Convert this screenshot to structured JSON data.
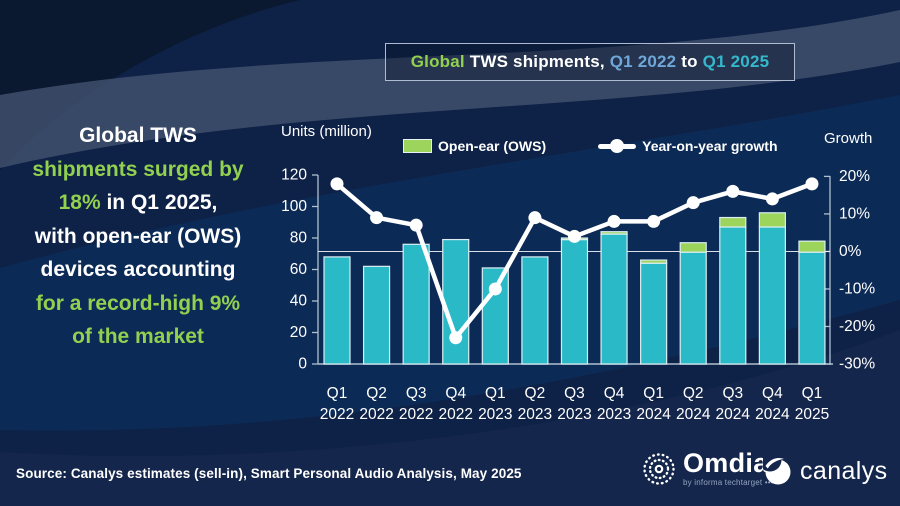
{
  "colors": {
    "background": "#0E2146",
    "accent_green": "#92D050",
    "bar_teal": "#29B9C7",
    "ows_green": "#9CD45C",
    "line_white": "#FFFFFF",
    "axis_gray": "#AFC0CF",
    "q1_2022_blue": "#6FA8D8",
    "q1_2025_teal": "#35B7CC"
  },
  "title_box": {
    "segments": [
      {
        "text": "Global",
        "color": "#92D050"
      },
      {
        "text": " TWS shipments, ",
        "color": "#FFFFFF"
      },
      {
        "text": "Q1 2022",
        "color": "#6FA8D8"
      },
      {
        "text": " to ",
        "color": "#FFFFFF"
      },
      {
        "text": "Q1 2025",
        "color": "#35B7CC"
      }
    ]
  },
  "headline": {
    "lines": [
      {
        "segments": [
          {
            "text": "Global TWS",
            "color": "#FFFFFF"
          }
        ]
      },
      {
        "segments": [
          {
            "text": "shipments surged by",
            "color": "#92D050"
          }
        ]
      },
      {
        "segments": [
          {
            "text": "18%",
            "color": "#92D050"
          },
          {
            "text": " in Q1 2025,",
            "color": "#FFFFFF"
          }
        ]
      },
      {
        "segments": [
          {
            "text": "with open-ear (OWS)",
            "color": "#FFFFFF"
          }
        ]
      },
      {
        "segments": [
          {
            "text": "devices accounting",
            "color": "#FFFFFF"
          }
        ]
      },
      {
        "segments": [
          {
            "text": "for a record-high 9%",
            "color": "#92D050"
          }
        ]
      },
      {
        "segments": [
          {
            "text": "of the market",
            "color": "#92D050"
          }
        ]
      }
    ]
  },
  "chart": {
    "units_axis_label": "Units (million)",
    "growth_axis_label": "Growth",
    "legend": [
      {
        "label": "Open-ear (OWS)"
      },
      {
        "label": "Year-on-year growth"
      }
    ]
  },
  "chart_data": {
    "type": "combo-bar-line",
    "title": "Global TWS shipments, Q1 2022 to Q1 2025",
    "categories": [
      "Q1 2022",
      "Q2 2022",
      "Q3 2022",
      "Q4 2022",
      "Q1 2023",
      "Q2 2023",
      "Q3 2023",
      "Q4 2023",
      "Q1 2024",
      "Q2 2024",
      "Q3 2024",
      "Q4 2024",
      "Q1 2025"
    ],
    "series": [
      {
        "name": "TWS shipments total (units million)",
        "type": "bar",
        "color": "#29B9C7",
        "values": [
          68,
          62,
          76,
          79,
          61,
          68,
          80,
          84,
          66,
          77,
          93,
          96,
          78
        ]
      },
      {
        "name": "Open-ear (OWS) portion (units million)",
        "type": "bar-top-segment",
        "color": "#9CD45C",
        "values": [
          0,
          0,
          0,
          0,
          0,
          0,
          1,
          1.5,
          2,
          6,
          6,
          9,
          7
        ]
      },
      {
        "name": "Year-on-year growth",
        "type": "line",
        "axis": "right",
        "color": "#FFFFFF",
        "unit": "%",
        "values": [
          18,
          9,
          7,
          -23,
          -10,
          9,
          4,
          8,
          8,
          13,
          16,
          14,
          18
        ]
      }
    ],
    "left_axis": {
      "label": "Units (million)",
      "min": 0,
      "max": 120,
      "ticks": [
        0,
        20,
        40,
        60,
        80,
        100,
        120
      ]
    },
    "right_axis": {
      "label": "Growth",
      "min": -30,
      "max": 20,
      "ticks": [
        "20%",
        "10%",
        "0%",
        "-10%",
        "-20%",
        "-30%"
      ]
    },
    "gridline_at_zero_growth": true,
    "legend_position": "top"
  },
  "footer": {
    "source": "Source: Canalys estimates (sell-in), Smart Personal Audio Analysis, May 2025",
    "omdia_name": "Omdia",
    "omdia_sub": "by informa techtarget •••",
    "canalys_name": "canalys"
  }
}
